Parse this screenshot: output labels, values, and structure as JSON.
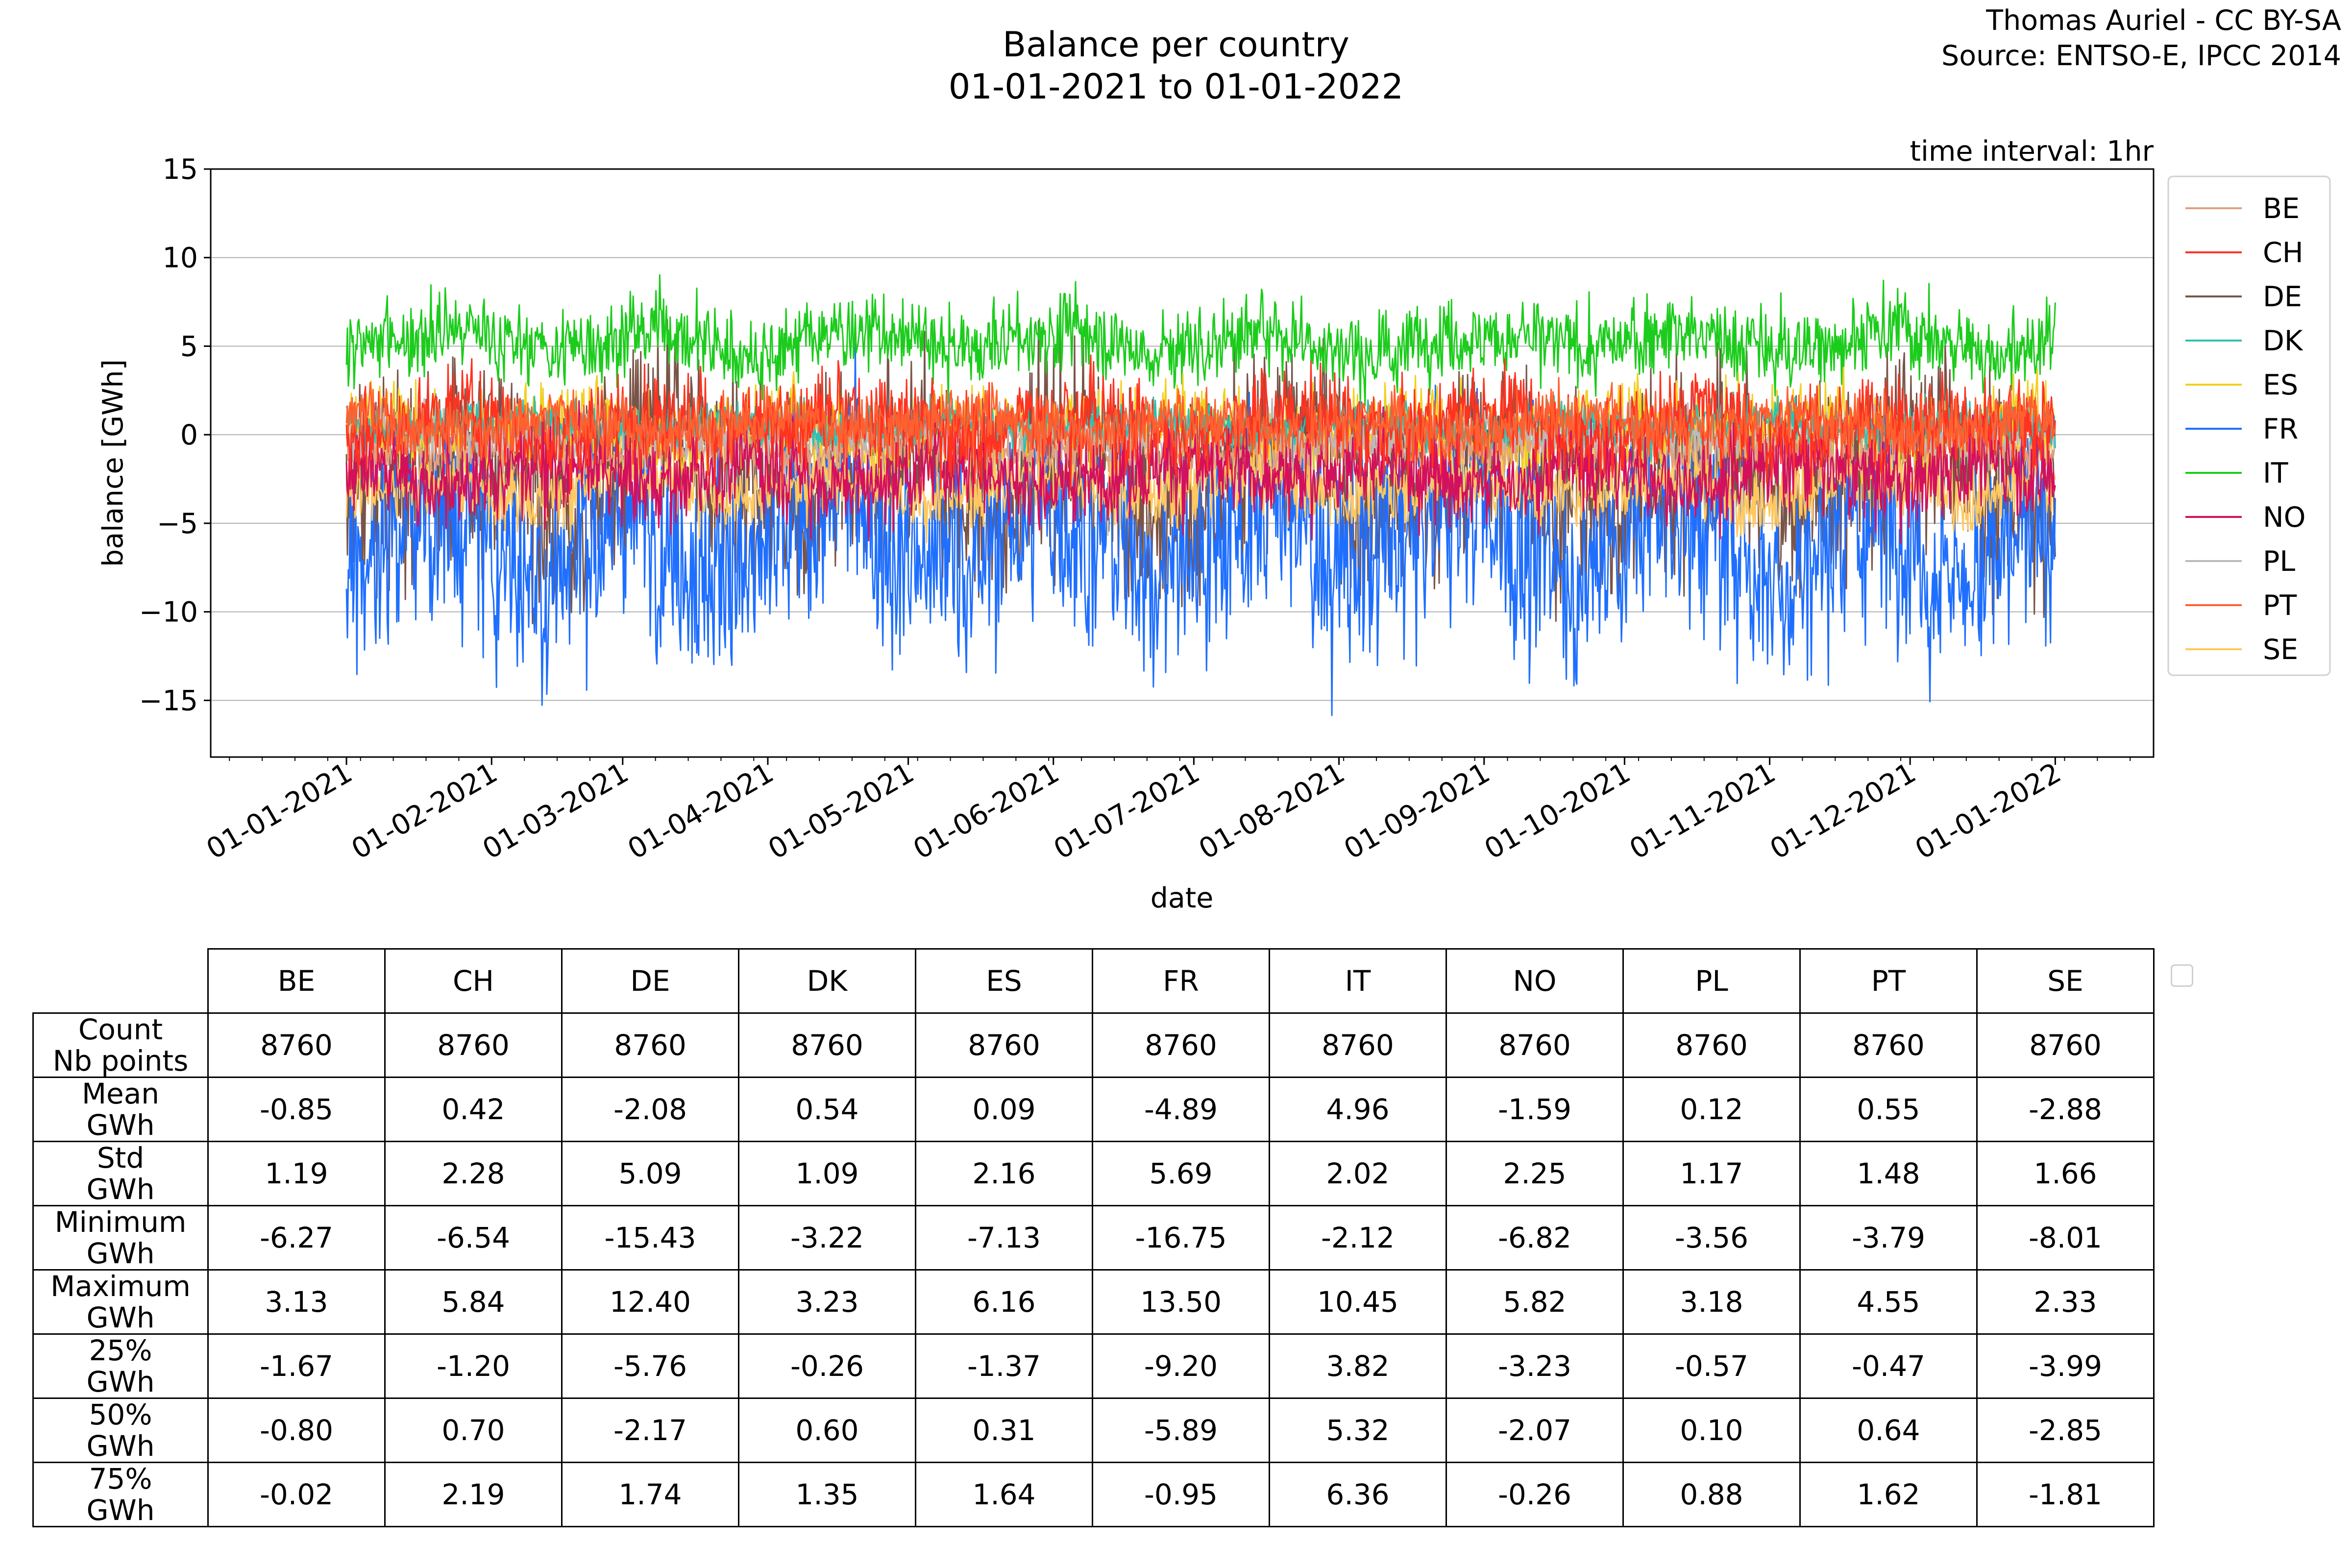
{
  "title": {
    "line1": "Balance per country",
    "line2": "01-01-2021 to 01-01-2022"
  },
  "credit": {
    "line1": "Thomas Auriel - CC BY-SA",
    "line2": "Source: ENTSO-E, IPCC 2014"
  },
  "chart_data": {
    "type": "line",
    "annotation": "time interval: 1hr",
    "xlabel": "date",
    "ylabel": "balance [GWh]",
    "ylim": [
      -18.2,
      15
    ],
    "yticks": [
      15,
      10,
      5,
      0,
      -5,
      -10,
      -15
    ],
    "xlim": [
      "2020-12-03",
      "2022-01-22"
    ],
    "xticks": [
      "01-01-2021",
      "01-02-2021",
      "01-03-2021",
      "01-04-2021",
      "01-05-2021",
      "01-06-2021",
      "01-07-2021",
      "01-08-2021",
      "01-09-2021",
      "01-10-2021",
      "01-11-2021",
      "01-12-2021",
      "01-01-2022"
    ],
    "x_range": [
      "2021-01-01",
      "2022-01-01"
    ],
    "grid": "horizontal",
    "legend_position": "right",
    "series": [
      {
        "name": "BE",
        "color": "#e0a080",
        "mean": -0.85,
        "std": 1.19,
        "min": -6.27,
        "max": 3.13,
        "p25": -1.67,
        "p50": -0.8,
        "p75": -0.02
      },
      {
        "name": "CH",
        "color": "#ff3320",
        "mean": 0.42,
        "std": 2.28,
        "min": -6.54,
        "max": 5.84,
        "p25": -1.2,
        "p50": 0.7,
        "p75": 2.19
      },
      {
        "name": "DE",
        "color": "#7a5448",
        "mean": -2.08,
        "std": 5.09,
        "min": -15.43,
        "max": 12.4,
        "p25": -5.76,
        "p50": -2.17,
        "p75": 1.74
      },
      {
        "name": "DK",
        "color": "#30c0b0",
        "mean": 0.54,
        "std": 1.09,
        "min": -3.22,
        "max": 3.23,
        "p25": -0.26,
        "p50": 0.6,
        "p75": 1.35
      },
      {
        "name": "ES",
        "color": "#f2d020",
        "mean": 0.09,
        "std": 2.16,
        "min": -7.13,
        "max": 6.16,
        "p25": -1.37,
        "p50": 0.31,
        "p75": 1.64
      },
      {
        "name": "FR",
        "color": "#1f6fff",
        "mean": -4.89,
        "std": 5.69,
        "min": -16.75,
        "max": 13.5,
        "p25": -9.2,
        "p50": -5.89,
        "p75": -0.95
      },
      {
        "name": "IT",
        "color": "#1ccc1c",
        "mean": 4.96,
        "std": 2.02,
        "min": -2.12,
        "max": 10.45,
        "p25": 3.82,
        "p50": 5.32,
        "p75": 6.36
      },
      {
        "name": "NO",
        "color": "#d4105c",
        "mean": -1.59,
        "std": 2.25,
        "min": -6.82,
        "max": 5.82,
        "p25": -3.23,
        "p50": -2.07,
        "p75": -0.26
      },
      {
        "name": "PL",
        "color": "#bbbbbb",
        "mean": 0.12,
        "std": 1.17,
        "min": -3.56,
        "max": 3.18,
        "p25": -0.57,
        "p50": 0.1,
        "p75": 0.88
      },
      {
        "name": "PT",
        "color": "#ff6030",
        "mean": 0.55,
        "std": 1.48,
        "min": -3.79,
        "max": 4.55,
        "p25": -0.47,
        "p50": 0.64,
        "p75": 1.62
      },
      {
        "name": "SE",
        "color": "#ffc860",
        "mean": -2.88,
        "std": 1.66,
        "min": -8.01,
        "max": 2.33,
        "p25": -3.99,
        "p50": -2.85,
        "p75": -1.81
      }
    ]
  },
  "table": {
    "columns": [
      "BE",
      "CH",
      "DE",
      "DK",
      "ES",
      "FR",
      "IT",
      "NO",
      "PL",
      "PT",
      "SE"
    ],
    "rows": [
      {
        "label1": "Count",
        "label2": "Nb points",
        "values": [
          "8760",
          "8760",
          "8760",
          "8760",
          "8760",
          "8760",
          "8760",
          "8760",
          "8760",
          "8760",
          "8760"
        ]
      },
      {
        "label1": "Mean",
        "label2": "GWh",
        "values": [
          "-0.85",
          "0.42",
          "-2.08",
          "0.54",
          "0.09",
          "-4.89",
          "4.96",
          "-1.59",
          "0.12",
          "0.55",
          "-2.88"
        ]
      },
      {
        "label1": "Std",
        "label2": "GWh",
        "values": [
          "1.19",
          "2.28",
          "5.09",
          "1.09",
          "2.16",
          "5.69",
          "2.02",
          "2.25",
          "1.17",
          "1.48",
          "1.66"
        ]
      },
      {
        "label1": "Minimum",
        "label2": "GWh",
        "values": [
          "-6.27",
          "-6.54",
          "-15.43",
          "-3.22",
          "-7.13",
          "-16.75",
          "-2.12",
          "-6.82",
          "-3.56",
          "-3.79",
          "-8.01"
        ]
      },
      {
        "label1": "Maximum",
        "label2": "GWh",
        "values": [
          "3.13",
          "5.84",
          "12.40",
          "3.23",
          "6.16",
          "13.50",
          "10.45",
          "5.82",
          "3.18",
          "4.55",
          "2.33"
        ]
      },
      {
        "label1": "25%",
        "label2": "GWh",
        "values": [
          "-1.67",
          "-1.20",
          "-5.76",
          "-0.26",
          "-1.37",
          "-9.20",
          "3.82",
          "-3.23",
          "-0.57",
          "-0.47",
          "-3.99"
        ]
      },
      {
        "label1": "50%",
        "label2": "GWh",
        "values": [
          "-0.80",
          "0.70",
          "-2.17",
          "0.60",
          "0.31",
          "-5.89",
          "5.32",
          "-2.07",
          "0.10",
          "0.64",
          "-2.85"
        ]
      },
      {
        "label1": "75%",
        "label2": "GWh",
        "values": [
          "-0.02",
          "2.19",
          "1.74",
          "1.35",
          "1.64",
          "-0.95",
          "6.36",
          "-0.26",
          "0.88",
          "1.62",
          "-1.81"
        ]
      }
    ]
  }
}
